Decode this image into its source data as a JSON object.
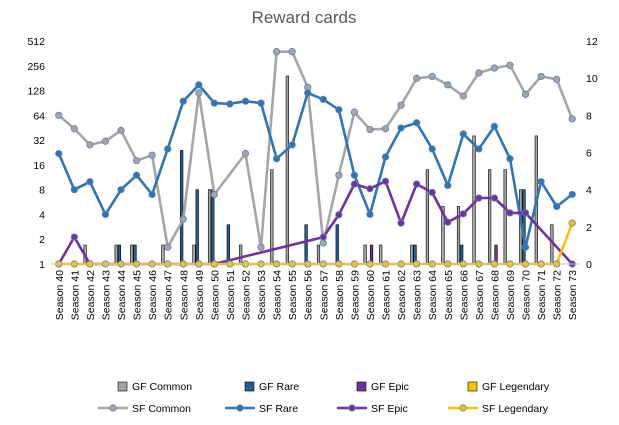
{
  "chart_data": {
    "type": "combo",
    "title": "Reward cards",
    "categories": [
      "Season 40",
      "Season 41",
      "Season 42",
      "Season 43",
      "Season 44",
      "Season 45",
      "Season 46",
      "Season 47",
      "Season 48",
      "Season 49",
      "Season 50",
      "Season 51",
      "Season 52",
      "Season 53",
      "Season 54",
      "Season 55",
      "Season 56",
      "Season 57",
      "Season 58",
      "Season 59",
      "Season 60",
      "Season 61",
      "Season 62",
      "Season 63",
      "Season 64",
      "Season 65",
      "Season 66",
      "Season 67",
      "Season 68",
      "Season 69",
      "Season 70",
      "Season 71",
      "Season 72",
      "Season 73"
    ],
    "y_left": {
      "scale": "log2",
      "ticks": [
        1,
        2,
        4,
        8,
        16,
        32,
        64,
        128,
        256,
        512
      ],
      "ylim": [
        1,
        512
      ]
    },
    "y_right": {
      "scale": "linear",
      "ticks": [
        0,
        2,
        4,
        6,
        8,
        10,
        12
      ],
      "ylim": [
        0,
        12
      ]
    },
    "grid": false,
    "legend_position": "bottom",
    "bar_series": [
      {
        "name": "GF Common",
        "axis": "left",
        "color": "#a5a5a5",
        "values": [
          1,
          1,
          1.7,
          1,
          1.7,
          1.7,
          1,
          1.7,
          1,
          1.7,
          8,
          1,
          1.7,
          1,
          14,
          192,
          1,
          1.7,
          1,
          1,
          1.7,
          1.7,
          1,
          1.7,
          14,
          5,
          5,
          36,
          14,
          14,
          8,
          36,
          3,
          1
        ]
      },
      {
        "name": "GF Rare",
        "axis": "left",
        "color": "#255e91",
        "values": [
          1,
          1,
          1,
          1,
          1.7,
          1.7,
          1,
          1,
          24,
          8,
          8,
          3,
          1,
          1,
          1,
          1,
          3,
          1,
          3,
          1,
          1,
          1,
          1,
          1.7,
          1,
          1,
          1.7,
          1,
          1,
          1,
          8,
          1,
          1,
          1
        ]
      },
      {
        "name": "GF Epic",
        "axis": "left",
        "color": "#7030a0",
        "values": [
          1,
          1,
          1,
          1,
          1,
          1,
          1,
          1,
          1,
          1,
          1,
          1,
          1,
          1,
          1,
          1,
          1,
          1,
          1,
          1,
          1.7,
          1,
          1,
          1,
          1,
          1,
          1,
          1,
          1.7,
          1,
          1,
          1,
          1,
          1
        ]
      },
      {
        "name": "GF Legendary",
        "axis": "left",
        "color": "#ffc000",
        "values": [
          1,
          1,
          1,
          1,
          1,
          1,
          1,
          1,
          1,
          1,
          1,
          1,
          1,
          1,
          1,
          1,
          1,
          1,
          1,
          1,
          1,
          1,
          1,
          1,
          1,
          1,
          1,
          1,
          1,
          1,
          1,
          1,
          1,
          1
        ]
      }
    ],
    "line_series": [
      {
        "name": "SF Common",
        "axis": "left",
        "color": "#a5a5a5",
        "values": [
          64,
          44,
          28,
          31,
          42,
          18,
          21,
          1.6,
          3.5,
          120,
          7,
          null,
          22,
          1.6,
          380,
          380,
          140,
          1.8,
          12,
          70,
          43,
          44,
          85,
          180,
          190,
          150,
          110,
          210,
          240,
          260,
          115,
          190,
          175,
          58
        ]
      },
      {
        "name": "SF Rare",
        "axis": "left",
        "color": "#2e75b6",
        "values": [
          22,
          8,
          10,
          4,
          8,
          12,
          7,
          25,
          95,
          150,
          90,
          88,
          95,
          90,
          19,
          28,
          120,
          100,
          75,
          12,
          4,
          20,
          45,
          52,
          25,
          9,
          38,
          25,
          47,
          19,
          1.6,
          10,
          5,
          7
        ]
      },
      {
        "name": "SF Epic",
        "axis": "right",
        "color": "#7030a0",
        "values": [
          0,
          1.45,
          0,
          null,
          null,
          null,
          null,
          null,
          0,
          0,
          0,
          null,
          null,
          null,
          null,
          null,
          null,
          1.45,
          2.65,
          4.3,
          4.05,
          4.45,
          2.2,
          4.3,
          3.85,
          2.25,
          2.7,
          3.55,
          3.55,
          2.75,
          2.75,
          null,
          null,
          0
        ]
      },
      {
        "name": "SF Legendary",
        "axis": "right",
        "color": "#ffc000",
        "values": [
          0,
          0,
          0,
          0,
          0,
          0,
          0,
          0,
          0,
          0,
          0,
          0,
          0,
          0,
          0,
          0,
          0,
          0,
          0,
          0,
          0,
          0,
          0,
          0,
          0,
          0,
          0,
          0,
          0,
          0,
          0,
          0,
          0,
          2.2
        ]
      }
    ]
  }
}
